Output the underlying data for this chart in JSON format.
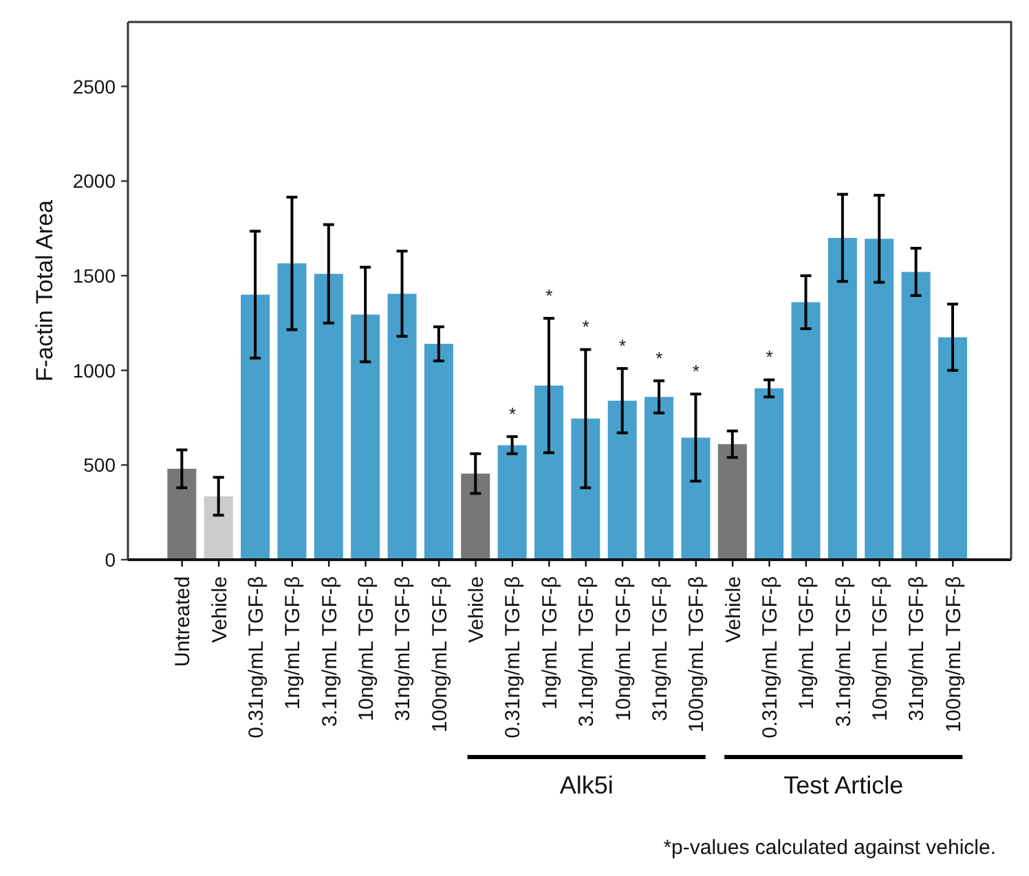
{
  "chart_data": {
    "type": "bar",
    "ylabel": "F-actin Total Area",
    "categories": [
      "Untreated",
      "Vehicle",
      "0.31ng/mL TGF-β",
      "1ng/mL TGF-β",
      "3.1ng/mL TGF-β",
      "10ng/mL TGF-β",
      "31ng/mL TGF-β",
      "100ng/mL TGF-β",
      "Vehicle",
      "0.31ng/mL TGF-β",
      "1ng/mL TGF-β",
      "3.1ng/mL TGF-β",
      "10ng/mL TGF-β",
      "31ng/mL TGF-β",
      "100ng/mL TGF-β",
      "Vehicle",
      "0.31ng/mL TGF-β",
      "1ng/mL TGF-β",
      "3.1ng/mL TGF-β",
      "10ng/mL TGF-β",
      "31ng/mL TGF-β",
      "100ng/mL TGF-β"
    ],
    "values": [
      480,
      335,
      1400,
      1565,
      1510,
      1295,
      1405,
      1140,
      455,
      605,
      920,
      745,
      840,
      860,
      645,
      610,
      905,
      1360,
      1700,
      1695,
      1520,
      1175
    ],
    "errors": [
      100,
      100,
      335,
      350,
      260,
      250,
      225,
      90,
      105,
      45,
      355,
      365,
      170,
      85,
      230,
      70,
      45,
      140,
      230,
      230,
      125,
      175
    ],
    "colors": [
      "#777777",
      "#cccccc",
      "#48a0cc",
      "#48a0cc",
      "#48a0cc",
      "#48a0cc",
      "#48a0cc",
      "#48a0cc",
      "#777777",
      "#48a0cc",
      "#48a0cc",
      "#48a0cc",
      "#48a0cc",
      "#48a0cc",
      "#48a0cc",
      "#777777",
      "#48a0cc",
      "#48a0cc",
      "#48a0cc",
      "#48a0cc",
      "#48a0cc",
      "#48a0cc"
    ],
    "ylim": [
      0,
      2840
    ],
    "yticks": [
      0,
      500,
      1000,
      1500,
      2000,
      2500
    ],
    "annotations": [
      "*",
      "*",
      "*",
      "*",
      "*",
      "*",
      "*",
      "Alk5i",
      "Test Article",
      "*p-values calculated against vehicle."
    ]
  }
}
